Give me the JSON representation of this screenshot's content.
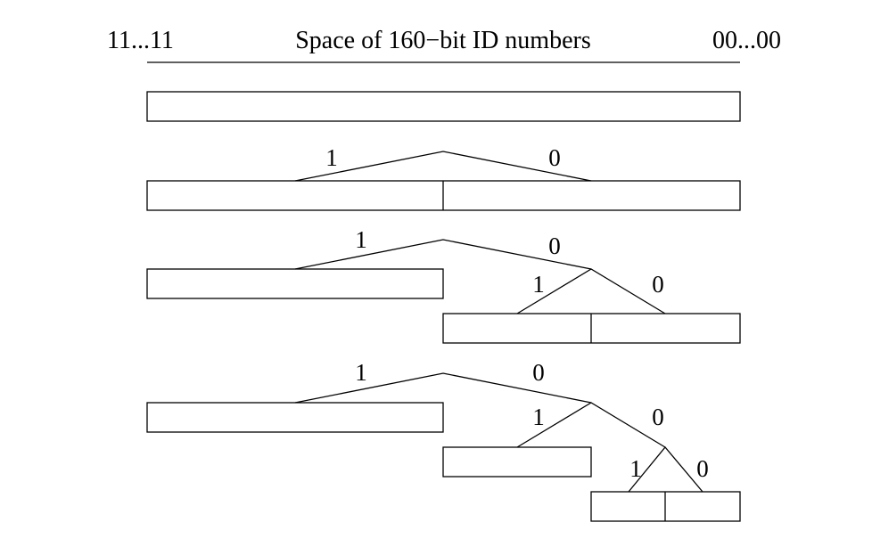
{
  "header": {
    "left_label": "11...11",
    "title": "Space of 160−bit ID numbers",
    "right_label": "00...00"
  },
  "branch_labels": {
    "one": "1",
    "zero": "0"
  }
}
